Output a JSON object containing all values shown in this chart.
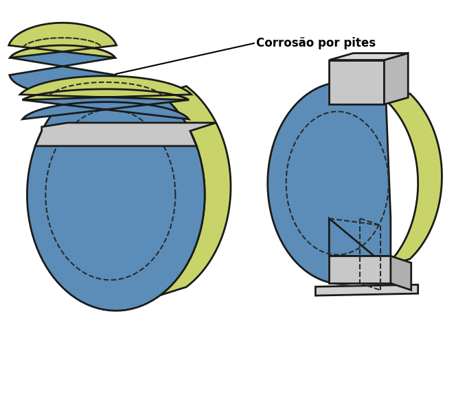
{
  "label": "Corrosão por pites",
  "label_fontsize": 12,
  "label_fontweight": "bold",
  "background_color": "#ffffff",
  "blue_color": "#5b8db8",
  "green_color": "#c8d46a",
  "gray_color": "#c8c8c8",
  "outline_color": "#1a1a1a",
  "dashed_color": "#2a2a2a",
  "line_width": 2.0,
  "dashed_lw": 1.5
}
